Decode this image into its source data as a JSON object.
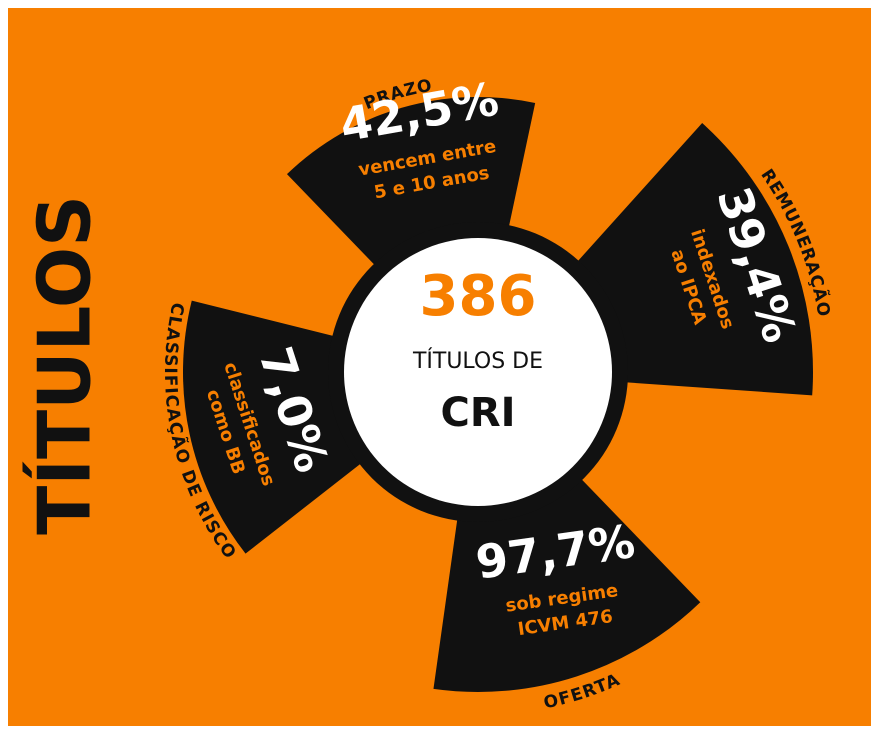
{
  "title": "TÍTULOS",
  "center": {
    "number": "386",
    "line1": "TÍTULOS DE",
    "line2": "CRI"
  },
  "segments": [
    {
      "label": "PRAZO",
      "value": "42,5%",
      "text": [
        "vencem entre",
        "5 e 10 anos"
      ]
    },
    {
      "label": "REMUNERAÇÃO",
      "value": "39,4%",
      "text": [
        "indexados",
        "ao IPCA"
      ]
    },
    {
      "label": "OFERTA",
      "value": "97,7%",
      "text": [
        "sob regime",
        "ICVM 476"
      ]
    },
    {
      "label": "CLASSIFICAÇÃO DE RISCO",
      "value": "7,0%",
      "text": [
        "classificados",
        "como BB"
      ]
    }
  ]
}
